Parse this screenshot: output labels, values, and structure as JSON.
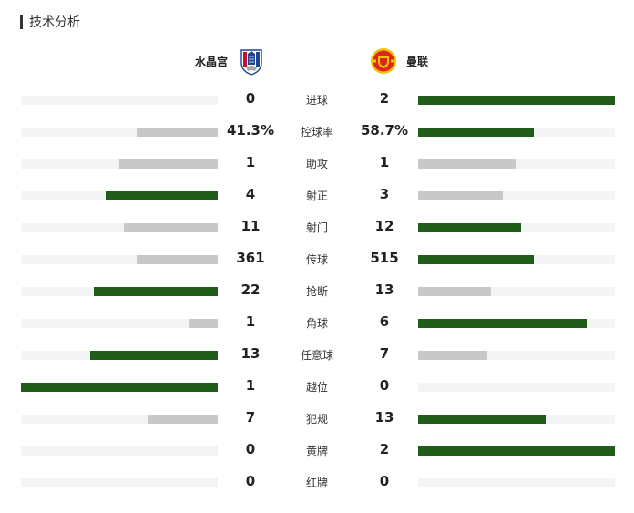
{
  "header": {
    "title": "技术分析"
  },
  "teams": {
    "home": {
      "name": "水晶宫",
      "badge_icon": "crystal-palace-badge-icon"
    },
    "away": {
      "name": "曼联",
      "badge_icon": "manchester-united-badge-icon"
    }
  },
  "colors": {
    "leading": "#215c1b",
    "trailing": "#c8c8c8",
    "track": "#f4f4f4"
  },
  "chart_data": {
    "type": "bar",
    "orientation": "horizontal-diverging",
    "categories": [
      "进球",
      "控球率",
      "助攻",
      "射正",
      "射门",
      "传球",
      "抢断",
      "角球",
      "任意球",
      "越位",
      "犯规",
      "黄牌",
      "红牌"
    ],
    "series": [
      {
        "name": "水晶宫",
        "values": [
          0,
          41.3,
          1,
          4,
          11,
          361,
          22,
          1,
          13,
          1,
          7,
          0,
          0
        ],
        "labels": [
          "0",
          "41.3%",
          "1",
          "4",
          "11",
          "361",
          "22",
          "1",
          "13",
          "1",
          "7",
          "0",
          "0"
        ]
      },
      {
        "name": "曼联",
        "values": [
          2,
          58.7,
          1,
          3,
          12,
          515,
          13,
          6,
          7,
          0,
          13,
          2,
          0
        ],
        "labels": [
          "2",
          "58.7%",
          "1",
          "3",
          "12",
          "515",
          "13",
          "6",
          "7",
          "0",
          "13",
          "2",
          "0"
        ]
      }
    ]
  }
}
